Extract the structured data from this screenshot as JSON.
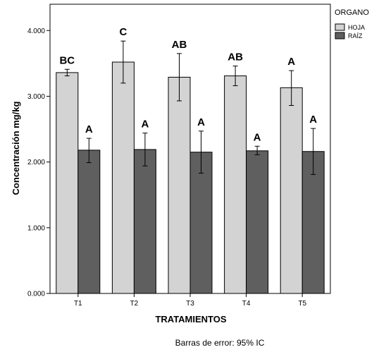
{
  "chart_data": {
    "type": "bar",
    "xlabel": "TRATAMIENTOS",
    "ylabel": "Concentración mg/kg",
    "ylim": [
      0,
      4400
    ],
    "yticks": [
      0,
      1000,
      2000,
      3000,
      4000
    ],
    "ytick_labels": [
      "0.000",
      "1.000",
      "2.000",
      "3.000",
      "4.000"
    ],
    "categories": [
      "T1",
      "T2",
      "T3",
      "T4",
      "T5"
    ],
    "legend_title": "ORGANO",
    "legend_position": "top-right",
    "grid": false,
    "series": [
      {
        "name": "HOJA",
        "color": "#d3d3d3",
        "values": [
          3360,
          3520,
          3290,
          3310,
          3130
        ],
        "error_low": [
          3310,
          3200,
          2930,
          3160,
          2860
        ],
        "error_high": [
          3410,
          3840,
          3650,
          3460,
          3390
        ],
        "letters": [
          "BC",
          "C",
          "AB",
          "AB",
          "A"
        ]
      },
      {
        "name": "RAÍZ",
        "color": "#5f5f5f",
        "values": [
          2180,
          2190,
          2150,
          2170,
          2160
        ],
        "error_low": [
          1990,
          1940,
          1830,
          2110,
          1810
        ],
        "error_high": [
          2360,
          2440,
          2470,
          2240,
          2510
        ],
        "letters": [
          "A",
          "A",
          "A",
          "A",
          "A"
        ]
      }
    ],
    "footnote": "Barras de error: 95% IC"
  }
}
